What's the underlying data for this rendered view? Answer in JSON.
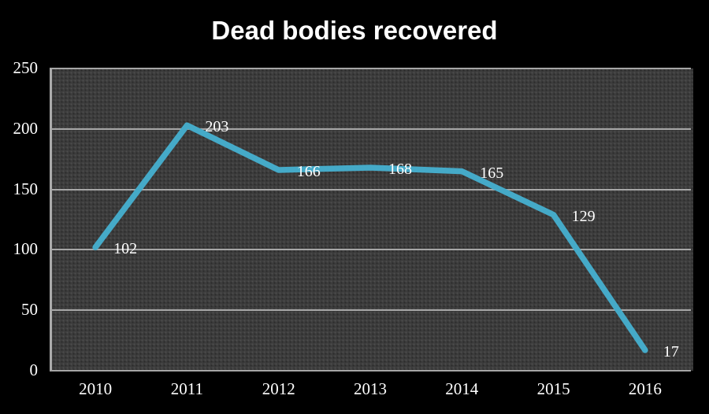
{
  "chart_data": {
    "type": "line",
    "title": "Dead bodies recovered",
    "categories": [
      "2010",
      "2011",
      "2012",
      "2013",
      "2014",
      "2015",
      "2016"
    ],
    "series": [
      {
        "name": "Dead bodies recovered",
        "values": [
          102,
          203,
          166,
          168,
          165,
          129,
          17
        ]
      }
    ],
    "data_labels": [
      "102",
      "203",
      "166",
      "168",
      "165",
      "129",
      "17"
    ],
    "xlabel": "",
    "ylabel": "",
    "ylim": [
      0,
      250
    ],
    "yticks": [
      0,
      50,
      100,
      150,
      200,
      250
    ],
    "grid": true,
    "legend_position": "none",
    "colors": {
      "page_background": "#000000",
      "plot_background": "#3C3C3C",
      "gridline": "#A6A6A6",
      "axis_line": "#ABABAB",
      "line": "#45AAC8",
      "title_text": "#FFFFFF",
      "tick_text": "#FFFFFF",
      "data_label_text": "#FFFFFF"
    }
  }
}
